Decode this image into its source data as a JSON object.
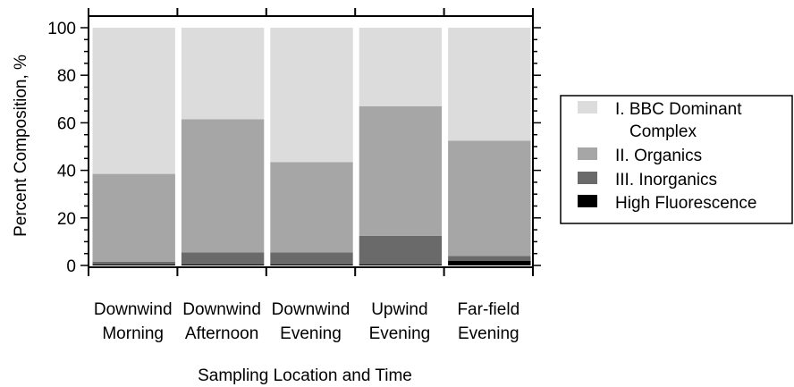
{
  "chart_data": {
    "type": "bar",
    "stacked": true,
    "title": "",
    "xlabel": "Sampling Location and Time",
    "ylabel": "Percent Composition, %",
    "ylim": [
      0,
      100
    ],
    "yticks": [
      "0",
      "20",
      "40",
      "60",
      "80",
      "100"
    ],
    "grid": false,
    "legend_position": "right",
    "categories": [
      [
        "Downwind",
        "Morning"
      ],
      [
        "Downwind",
        "Afternoon"
      ],
      [
        "Downwind",
        "Evening"
      ],
      [
        "Upwind",
        "Evening"
      ],
      [
        "Far-field",
        "Evening"
      ]
    ],
    "series": [
      {
        "name": "High Fluorescence",
        "color": "#000000",
        "values": [
          0.5,
          0.5,
          0.5,
          0.5,
          2.0
        ]
      },
      {
        "name": "III. Inorganics",
        "color": "#6a6a6a",
        "values": [
          1.0,
          5.0,
          5.0,
          12.0,
          2.0
        ]
      },
      {
        "name": "II. Organics",
        "color": "#a6a6a6",
        "values": [
          37.0,
          56.0,
          38.0,
          54.5,
          48.5
        ]
      },
      {
        "name": "I. BBC Dominant Complex",
        "color": "#dcdcdc",
        "values": [
          61.5,
          38.5,
          56.5,
          33.0,
          47.5
        ]
      }
    ],
    "legend": [
      {
        "series": "I. BBC Dominant Complex",
        "lines": [
          "I. BBC Dominant",
          "Complex"
        ],
        "color": "#dcdcdc"
      },
      {
        "series": "II. Organics",
        "lines": [
          "II. Organics"
        ],
        "color": "#a6a6a6"
      },
      {
        "series": "III. Inorganics",
        "lines": [
          "III. Inorganics"
        ],
        "color": "#6a6a6a"
      },
      {
        "series": "High Fluorescence",
        "lines": [
          "High Fluorescence"
        ],
        "color": "#000000"
      }
    ]
  }
}
